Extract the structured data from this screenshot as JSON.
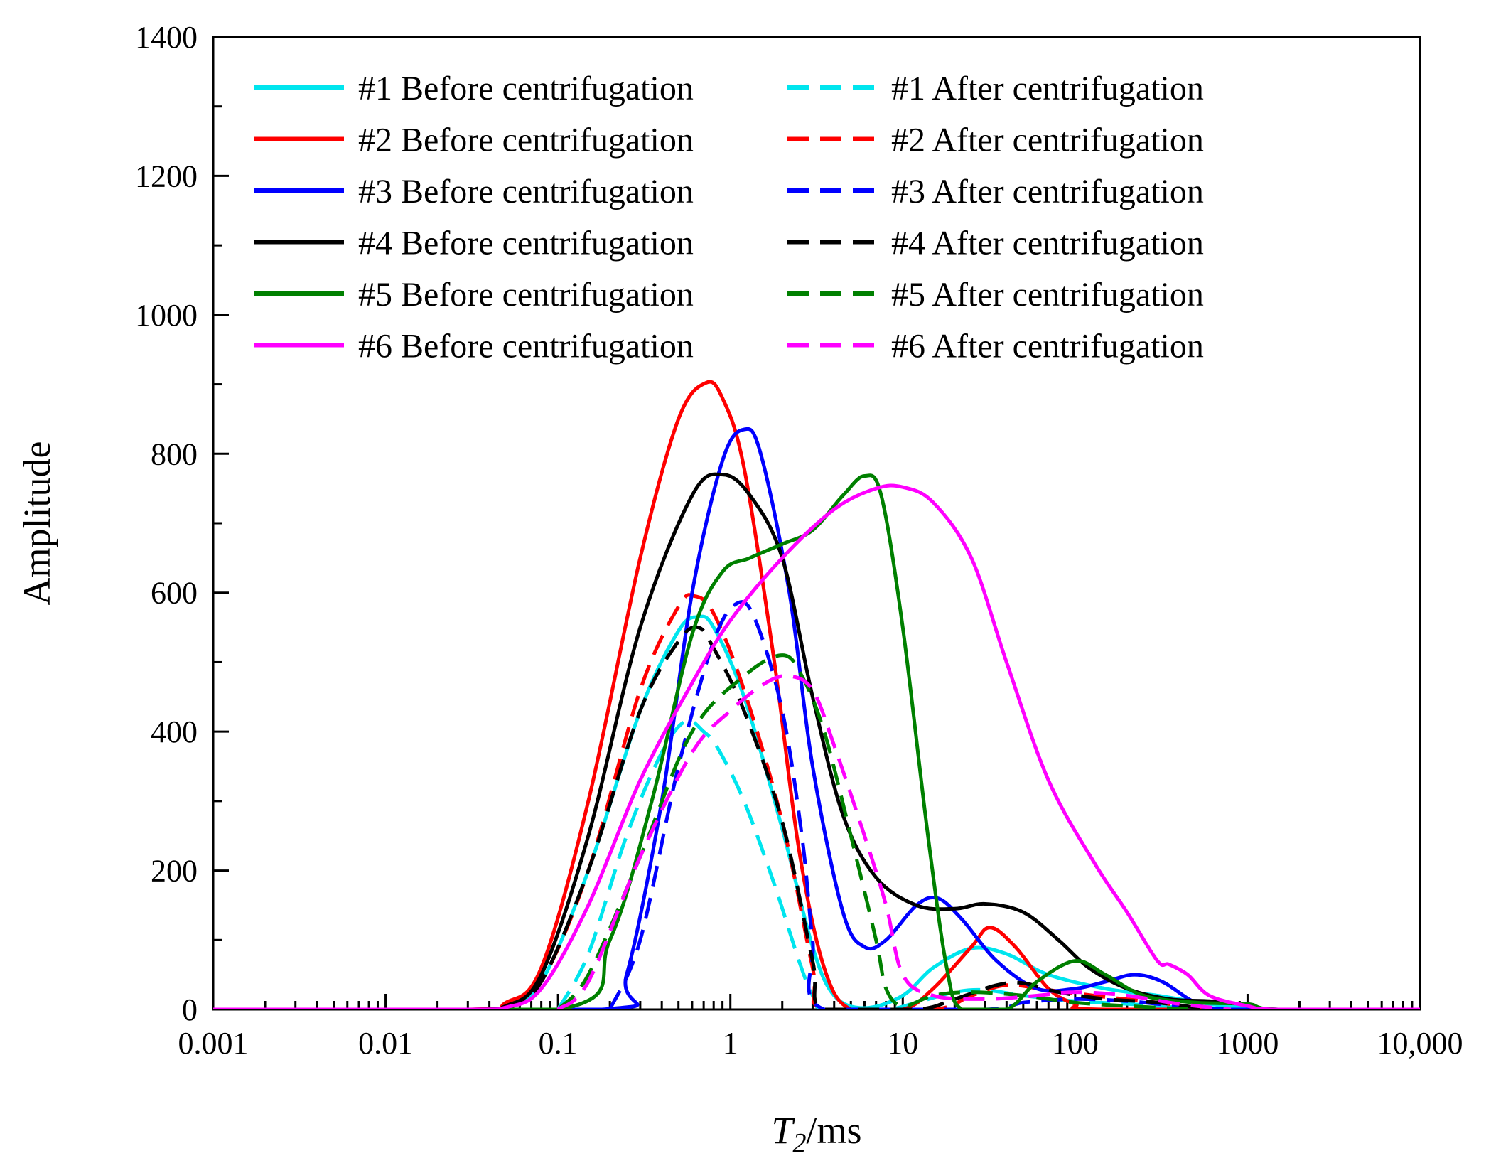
{
  "chart_data": {
    "type": "line",
    "xlabel_main": "T",
    "xlabel_sub": "2",
    "xlabel_unit": "/ms",
    "ylabel": "Amplitude",
    "xscale": "log",
    "xlim": [
      0.001,
      10000
    ],
    "ylim": [
      0,
      1400
    ],
    "x_ticks": [
      0.001,
      0.01,
      0.1,
      1,
      10,
      100,
      1000,
      10000
    ],
    "x_tick_labels": [
      "0.001",
      "0.01",
      "0.1",
      "1",
      "10",
      "100",
      "1000",
      "10,000"
    ],
    "y_ticks": [
      0,
      200,
      400,
      600,
      800,
      1000,
      1200,
      1400
    ],
    "y_tick_labels": [
      "0",
      "200",
      "400",
      "600",
      "800",
      "1000",
      "1200",
      "1400"
    ],
    "legend_placement": "top-left, two columns",
    "series": [
      {
        "name": "#1 Before centrifugation",
        "color": "#00e5ee",
        "dash": "solid",
        "points": [
          [
            0.001,
            0
          ],
          [
            0.03,
            0
          ],
          [
            0.05,
            5
          ],
          [
            0.08,
            40
          ],
          [
            0.15,
            200
          ],
          [
            0.3,
            430
          ],
          [
            0.5,
            545
          ],
          [
            0.65,
            565
          ],
          [
            0.8,
            550
          ],
          [
            1.2,
            450
          ],
          [
            2,
            260
          ],
          [
            3,
            90
          ],
          [
            4,
            20
          ],
          [
            6,
            2
          ],
          [
            10,
            20
          ],
          [
            15,
            60
          ],
          [
            25,
            88
          ],
          [
            40,
            80
          ],
          [
            70,
            50
          ],
          [
            150,
            30
          ],
          [
            300,
            20
          ],
          [
            600,
            8
          ],
          [
            1000,
            2
          ],
          [
            1500,
            0
          ],
          [
            10000,
            0
          ]
        ]
      },
      {
        "name": "#1 After centrifugation",
        "color": "#00e5ee",
        "dash": "dashed",
        "points": [
          [
            0.1,
            0
          ],
          [
            0.15,
            80
          ],
          [
            0.25,
            250
          ],
          [
            0.4,
            370
          ],
          [
            0.55,
            415
          ],
          [
            0.7,
            400
          ],
          [
            0.85,
            375
          ],
          [
            1.2,
            300
          ],
          [
            1.8,
            180
          ],
          [
            2.5,
            70
          ],
          [
            3,
            20
          ],
          [
            3.5,
            0
          ],
          [
            8,
            0
          ],
          [
            12,
            10
          ],
          [
            20,
            25
          ],
          [
            30,
            28
          ],
          [
            50,
            20
          ],
          [
            100,
            12
          ],
          [
            200,
            8
          ],
          [
            400,
            3
          ],
          [
            800,
            0
          ]
        ]
      },
      {
        "name": "#2 Before centrifugation",
        "color": "#ff0000",
        "dash": "solid",
        "points": [
          [
            0.001,
            0
          ],
          [
            0.03,
            0
          ],
          [
            0.05,
            10
          ],
          [
            0.08,
            60
          ],
          [
            0.15,
            300
          ],
          [
            0.3,
            650
          ],
          [
            0.5,
            850
          ],
          [
            0.72,
            902
          ],
          [
            0.9,
            880
          ],
          [
            1.2,
            780
          ],
          [
            1.8,
            500
          ],
          [
            2.5,
            230
          ],
          [
            3.5,
            60
          ],
          [
            5,
            0
          ],
          [
            10,
            0
          ],
          [
            15,
            30
          ],
          [
            25,
            90
          ],
          [
            32,
            118
          ],
          [
            45,
            90
          ],
          [
            70,
            30
          ],
          [
            100,
            8
          ],
          [
            150,
            0
          ],
          [
            10000,
            0
          ]
        ]
      },
      {
        "name": "#2 After centrifugation",
        "color": "#ff0000",
        "dash": "dashed",
        "points": [
          [
            0.05,
            0
          ],
          [
            0.08,
            40
          ],
          [
            0.15,
            200
          ],
          [
            0.3,
            460
          ],
          [
            0.5,
            580
          ],
          [
            0.62,
            595
          ],
          [
            0.8,
            570
          ],
          [
            1.2,
            460
          ],
          [
            2,
            270
          ],
          [
            3,
            60
          ],
          [
            3.5,
            0
          ],
          [
            15,
            0
          ],
          [
            25,
            20
          ],
          [
            40,
            35
          ],
          [
            70,
            28
          ],
          [
            150,
            18
          ],
          [
            300,
            10
          ],
          [
            600,
            0
          ]
        ]
      },
      {
        "name": "#3 Before centrifugation",
        "color": "#0000ff",
        "dash": "solid",
        "points": [
          [
            0.001,
            0
          ],
          [
            0.18,
            0
          ],
          [
            0.25,
            50
          ],
          [
            0.4,
            300
          ],
          [
            0.6,
            600
          ],
          [
            0.9,
            790
          ],
          [
            1.2,
            835
          ],
          [
            1.5,
            800
          ],
          [
            2.2,
            600
          ],
          [
            3,
            350
          ],
          [
            4.5,
            140
          ],
          [
            6,
            90
          ],
          [
            8,
            100
          ],
          [
            12,
            150
          ],
          [
            16,
            160
          ],
          [
            22,
            130
          ],
          [
            35,
            70
          ],
          [
            60,
            30
          ],
          [
            100,
            30
          ],
          [
            150,
            40
          ],
          [
            220,
            50
          ],
          [
            320,
            40
          ],
          [
            500,
            10
          ],
          [
            800,
            0
          ],
          [
            10000,
            0
          ]
        ]
      },
      {
        "name": "#3 After centrifugation",
        "color": "#0000ff",
        "dash": "dashed",
        "points": [
          [
            0.2,
            0
          ],
          [
            0.3,
            100
          ],
          [
            0.5,
            350
          ],
          [
            0.8,
            530
          ],
          [
            1.1,
            585
          ],
          [
            1.4,
            560
          ],
          [
            2,
            430
          ],
          [
            2.6,
            250
          ],
          [
            3,
            100
          ],
          [
            3.5,
            0
          ],
          [
            30,
            0
          ],
          [
            50,
            10
          ],
          [
            100,
            15
          ],
          [
            200,
            12
          ],
          [
            400,
            5
          ],
          [
            800,
            0
          ]
        ]
      },
      {
        "name": "#4 Before centrifugation",
        "color": "#000000",
        "dash": "solid",
        "points": [
          [
            0.001,
            0
          ],
          [
            0.03,
            0
          ],
          [
            0.05,
            5
          ],
          [
            0.08,
            50
          ],
          [
            0.15,
            250
          ],
          [
            0.3,
            550
          ],
          [
            0.6,
            740
          ],
          [
            0.9,
            770
          ],
          [
            1.3,
            740
          ],
          [
            2,
            650
          ],
          [
            3,
            450
          ],
          [
            4.5,
            280
          ],
          [
            7,
            190
          ],
          [
            12,
            150
          ],
          [
            20,
            145
          ],
          [
            30,
            152
          ],
          [
            50,
            140
          ],
          [
            80,
            100
          ],
          [
            120,
            60
          ],
          [
            200,
            30
          ],
          [
            350,
            15
          ],
          [
            600,
            12
          ],
          [
            900,
            8
          ],
          [
            1500,
            0
          ],
          [
            10000,
            0
          ]
        ]
      },
      {
        "name": "#4 After centrifugation",
        "color": "#000000",
        "dash": "dashed",
        "points": [
          [
            0.05,
            0
          ],
          [
            0.08,
            40
          ],
          [
            0.15,
            200
          ],
          [
            0.3,
            430
          ],
          [
            0.5,
            530
          ],
          [
            0.65,
            550
          ],
          [
            0.8,
            520
          ],
          [
            1.2,
            430
          ],
          [
            2,
            270
          ],
          [
            3,
            70
          ],
          [
            3.5,
            0
          ],
          [
            12,
            0
          ],
          [
            20,
            15
          ],
          [
            35,
            35
          ],
          [
            50,
            38
          ],
          [
            80,
            25
          ],
          [
            150,
            15
          ],
          [
            300,
            10
          ],
          [
            600,
            0
          ]
        ]
      },
      {
        "name": "#5 Before centrifugation",
        "color": "#008000",
        "dash": "solid",
        "points": [
          [
            0.001,
            0
          ],
          [
            0.1,
            0
          ],
          [
            0.2,
            100
          ],
          [
            0.35,
            300
          ],
          [
            0.6,
            540
          ],
          [
            0.9,
            630
          ],
          [
            1.3,
            650
          ],
          [
            2,
            670
          ],
          [
            3,
            690
          ],
          [
            4.5,
            740
          ],
          [
            6,
            768
          ],
          [
            7.5,
            740
          ],
          [
            10,
            550
          ],
          [
            14,
            250
          ],
          [
            18,
            60
          ],
          [
            22,
            0
          ],
          [
            40,
            0
          ],
          [
            60,
            40
          ],
          [
            100,
            70
          ],
          [
            150,
            50
          ],
          [
            250,
            20
          ],
          [
            500,
            10
          ],
          [
            1000,
            8
          ],
          [
            1500,
            0
          ],
          [
            10000,
            0
          ]
        ]
      },
      {
        "name": "#5 After centrifugation",
        "color": "#008000",
        "dash": "dashed",
        "points": [
          [
            0.1,
            0
          ],
          [
            0.15,
            50
          ],
          [
            0.3,
            220
          ],
          [
            0.6,
            400
          ],
          [
            1.2,
            480
          ],
          [
            2,
            510
          ],
          [
            2.6,
            480
          ],
          [
            3.5,
            400
          ],
          [
            5,
            250
          ],
          [
            7,
            100
          ],
          [
            8,
            30
          ],
          [
            10,
            5
          ],
          [
            15,
            20
          ],
          [
            25,
            25
          ],
          [
            50,
            20
          ],
          [
            100,
            10
          ],
          [
            200,
            5
          ],
          [
            500,
            0
          ]
        ]
      },
      {
        "name": "#6 Before centrifugation",
        "color": "#ff00ff",
        "dash": "solid",
        "points": [
          [
            0.001,
            0
          ],
          [
            0.03,
            0
          ],
          [
            0.05,
            3
          ],
          [
            0.08,
            30
          ],
          [
            0.15,
            150
          ],
          [
            0.3,
            330
          ],
          [
            0.6,
            470
          ],
          [
            1,
            560
          ],
          [
            2,
            650
          ],
          [
            4,
            720
          ],
          [
            7,
            750
          ],
          [
            10,
            752
          ],
          [
            15,
            730
          ],
          [
            25,
            650
          ],
          [
            40,
            500
          ],
          [
            70,
            330
          ],
          [
            130,
            210
          ],
          [
            200,
            140
          ],
          [
            300,
            70
          ],
          [
            350,
            65
          ],
          [
            450,
            50
          ],
          [
            600,
            20
          ],
          [
            1000,
            5
          ],
          [
            1500,
            0
          ],
          [
            10000,
            0
          ]
        ]
      },
      {
        "name": "#6 After centrifugation",
        "color": "#ff00ff",
        "dash": "dashed",
        "points": [
          [
            0.1,
            0
          ],
          [
            0.15,
            40
          ],
          [
            0.3,
            220
          ],
          [
            0.6,
            370
          ],
          [
            1,
            430
          ],
          [
            1.6,
            470
          ],
          [
            2.2,
            480
          ],
          [
            3,
            460
          ],
          [
            4,
            380
          ],
          [
            6,
            250
          ],
          [
            8,
            150
          ],
          [
            10,
            50
          ],
          [
            15,
            20
          ],
          [
            30,
            15
          ],
          [
            60,
            20
          ],
          [
            100,
            25
          ],
          [
            200,
            20
          ],
          [
            400,
            8
          ],
          [
            800,
            0
          ]
        ]
      }
    ]
  }
}
